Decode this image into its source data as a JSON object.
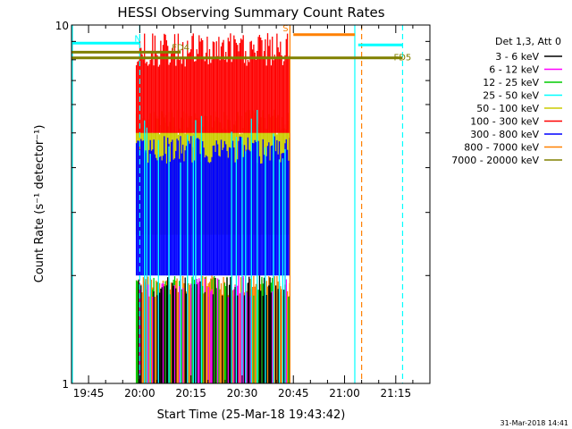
{
  "chart_data": {
    "type": "line",
    "title": "HESSI Observing Summary Count Rates",
    "xlabel": "Start Time (25-Mar-18 19:43:42)",
    "ylabel": "Count Rate (s⁻¹ detector⁻¹)",
    "x_unit": "time of day (hh:mm), 25-Mar-18",
    "xlim": [
      "19:40",
      "21:25"
    ],
    "ylim": [
      1,
      10
    ],
    "y_scale": "log",
    "xticks": [
      "19:45",
      "20:00",
      "20:15",
      "20:30",
      "20:45",
      "21:00",
      "21:15"
    ],
    "yticks": [
      "1",
      "10"
    ],
    "grid": false,
    "legend_position": "right",
    "legend_title": "Det 1,3, Att 0",
    "footer_date": "31-Mar-2018 14:41",
    "series": [
      {
        "name": "3 - 6 keV",
        "color": "#000000",
        "band": [
          1,
          2.0
        ]
      },
      {
        "name": "6 - 12 keV",
        "color": "#ff00ff",
        "band": [
          1,
          2.0
        ]
      },
      {
        "name": "12 - 25 keV",
        "color": "#00cc00",
        "band": [
          1,
          2.0
        ]
      },
      {
        "name": "25 - 50 keV",
        "color": "#00ffff",
        "band": [
          1,
          5.8
        ]
      },
      {
        "name": "50 - 100 keV",
        "color": "#cccc00",
        "band": [
          2.6,
          5.8
        ]
      },
      {
        "name": "100 - 300 keV",
        "color": "#ff0000",
        "band": [
          5.0,
          9.5
        ]
      },
      {
        "name": "300 - 800 keV",
        "color": "#0000ff",
        "band": [
          2.0,
          4.9
        ]
      },
      {
        "name": "800 - 7000 keV",
        "color": "#ff8000",
        "band": [
          1,
          2.0
        ]
      },
      {
        "name": "7000 - 20000 keV",
        "color": "#808000",
        "band": [
          8.3,
          8.3
        ]
      }
    ],
    "data_interval": [
      "19:59",
      "20:44"
    ],
    "annotations": [
      {
        "label": "N",
        "color": "#00ffff",
        "x_start": "19:40",
        "x_end": "20:00",
        "y": 8.9
      },
      {
        "label": "S",
        "color": "#ff8000",
        "x_start": "20:45",
        "x_end": "21:03",
        "y": 9.4
      },
      {
        "label": "",
        "color": "#00ffff",
        "x_start": "21:04",
        "x_end": "21:17",
        "y": 8.8
      },
      {
        "label": "FD4",
        "color": "#808000",
        "x_start": "19:40",
        "x_end": "20:12",
        "y": 8.4
      },
      {
        "label": "FD5",
        "color": "#808000",
        "x_start": "19:40",
        "x_end": "21:17",
        "y": 8.1
      }
    ],
    "vertical_markers": [
      {
        "x": "19:40",
        "color": "#00ffff",
        "style": "solid"
      },
      {
        "x": "20:00",
        "color": "#00ffff",
        "style": "dashed"
      },
      {
        "x": "20:44",
        "color": "#ff8000",
        "style": "solid"
      },
      {
        "x": "21:03",
        "color": "#00ffff",
        "style": "solid"
      },
      {
        "x": "21:05",
        "color": "#ff8000",
        "style": "dashed"
      },
      {
        "x": "21:17",
        "color": "#00ffff",
        "style": "dashed"
      }
    ]
  }
}
